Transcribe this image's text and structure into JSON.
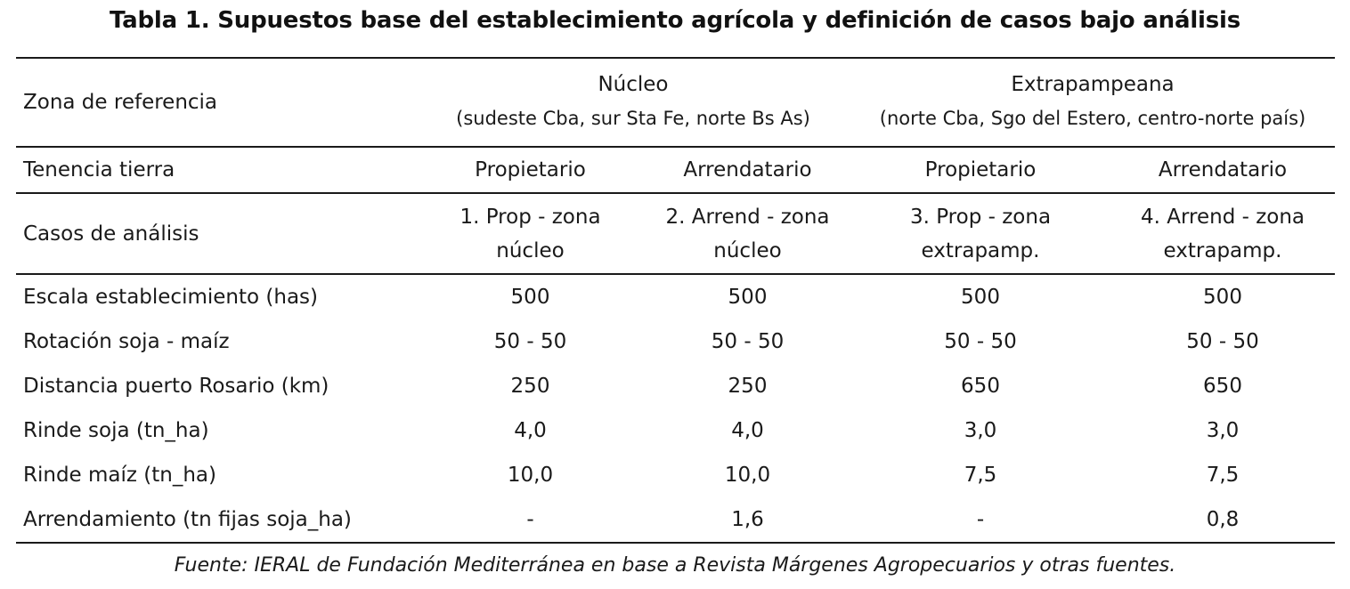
{
  "title": "Tabla 1. Supuestos base del establecimiento agrícola y definición de casos bajo análisis",
  "zona": {
    "label": "Zona de referencia",
    "nucleo": {
      "name": "Núcleo",
      "sub": "(sudeste Cba, sur Sta Fe, norte Bs As)"
    },
    "extra": {
      "name": "Extrapampeana",
      "sub": "(norte Cba, Sgo del Estero, centro-norte país)"
    }
  },
  "tenencia": {
    "label": "Tenencia tierra",
    "values": [
      "Propietario",
      "Arrendatario",
      "Propietario",
      "Arrendatario"
    ]
  },
  "casos": {
    "label": "Casos de análisis",
    "values": [
      {
        "line1": "1. Prop - zona",
        "line2": "núcleo"
      },
      {
        "line1": "2. Arrend - zona",
        "line2": "núcleo"
      },
      {
        "line1": "3. Prop - zona",
        "line2": "extrapamp."
      },
      {
        "line1": "4. Arrend - zona",
        "line2": "extrapamp."
      }
    ]
  },
  "rows": [
    {
      "label": "Escala establecimiento (has)",
      "values": [
        "500",
        "500",
        "500",
        "500"
      ]
    },
    {
      "label": "Rotación soja - maíz",
      "values": [
        "50 - 50",
        "50 - 50",
        "50 - 50",
        "50 - 50"
      ]
    },
    {
      "label": "Distancia puerto Rosario (km)",
      "values": [
        "250",
        "250",
        "650",
        "650"
      ]
    },
    {
      "label": "Rinde soja (tn_ha)",
      "values": [
        "4,0",
        "4,0",
        "3,0",
        "3,0"
      ]
    },
    {
      "label": "Rinde maíz (tn_ha)",
      "values": [
        "10,0",
        "10,0",
        "7,5",
        "7,5"
      ]
    },
    {
      "label": "Arrendamiento (tn fijas soja_ha)",
      "values": [
        "-",
        "1,6",
        "-",
        "0,8"
      ]
    }
  ],
  "source": "Fuente: IERAL de Fundación Mediterránea en base a Revista Márgenes Agropecuarios y otras fuentes."
}
